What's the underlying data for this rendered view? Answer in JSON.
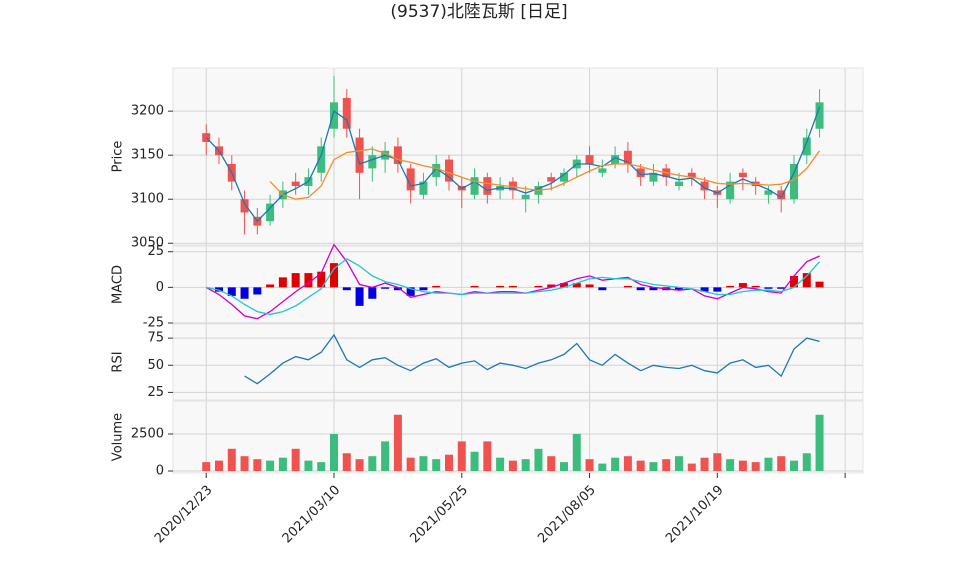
{
  "chart_data": {
    "type": "candlestick",
    "title": "(9537)北陸瓦斯 [日足]",
    "x": [
      0,
      5,
      10,
      15,
      20,
      25,
      30,
      35,
      40,
      45,
      50,
      55,
      60,
      65,
      70,
      75,
      80,
      85,
      90,
      95,
      100,
      105,
      110,
      115,
      120,
      125,
      130,
      135,
      140,
      145,
      150,
      155,
      160,
      165,
      170,
      175,
      180,
      185,
      190,
      195,
      200,
      205,
      210,
      215,
      220,
      225,
      230,
      235,
      240
    ],
    "xlim": [
      -13,
      257
    ],
    "xticks": [
      {
        "value": 0,
        "label": "2020/12/23"
      },
      {
        "value": 50,
        "label": "2021/03/10"
      },
      {
        "value": 100,
        "label": "2021/05/25"
      },
      {
        "value": 150,
        "label": "2021/08/05"
      },
      {
        "value": 200,
        "label": "2021/10/19"
      },
      {
        "value": 250,
        "label": null
      }
    ],
    "grid": true,
    "price": {
      "ylabel": "Price",
      "ylim": [
        3048,
        3249
      ],
      "yticks": [
        3050,
        3100,
        3150,
        3200
      ],
      "up_color": "#3dbd7d",
      "down_color": "#ef5350",
      "open": [
        3175,
        3160,
        3140,
        3100,
        3080,
        3075,
        3100,
        3120,
        3115,
        3130,
        3180,
        3215,
        3170,
        3135,
        3145,
        3160,
        3135,
        3105,
        3125,
        3145,
        3115,
        3105,
        3125,
        3110,
        3120,
        3100,
        3105,
        3125,
        3120,
        3135,
        3150,
        3130,
        3140,
        3155,
        3135,
        3120,
        3135,
        3115,
        3130,
        3120,
        3110,
        3100,
        3130,
        3120,
        3105,
        3110,
        3100,
        3150,
        3180
      ],
      "high": [
        3185,
        3170,
        3150,
        3110,
        3090,
        3105,
        3120,
        3130,
        3135,
        3170,
        3240,
        3225,
        3180,
        3160,
        3165,
        3170,
        3140,
        3130,
        3150,
        3150,
        3125,
        3135,
        3130,
        3125,
        3125,
        3115,
        3120,
        3130,
        3135,
        3150,
        3160,
        3145,
        3160,
        3165,
        3140,
        3140,
        3140,
        3130,
        3135,
        3125,
        3115,
        3130,
        3135,
        3125,
        3115,
        3115,
        3150,
        3180,
        3225
      ],
      "low": [
        3150,
        3140,
        3110,
        3060,
        3060,
        3070,
        3090,
        3105,
        3105,
        3120,
        3170,
        3170,
        3100,
        3120,
        3130,
        3130,
        3095,
        3100,
        3115,
        3110,
        3090,
        3100,
        3095,
        3100,
        3100,
        3085,
        3095,
        3110,
        3115,
        3125,
        3130,
        3125,
        3135,
        3130,
        3115,
        3115,
        3115,
        3110,
        3115,
        3100,
        3090,
        3095,
        3110,
        3105,
        3095,
        3085,
        3095,
        3140,
        3170
      ],
      "close": [
        3165,
        3150,
        3120,
        3085,
        3070,
        3095,
        3110,
        3115,
        3125,
        3160,
        3210,
        3180,
        3130,
        3150,
        3155,
        3140,
        3110,
        3120,
        3140,
        3120,
        3110,
        3125,
        3105,
        3115,
        3110,
        3105,
        3115,
        3120,
        3130,
        3145,
        3140,
        3135,
        3150,
        3140,
        3125,
        3130,
        3125,
        3120,
        3125,
        3110,
        3105,
        3120,
        3125,
        3115,
        3110,
        3100,
        3140,
        3170,
        3210
      ],
      "series": [
        {
          "color": "#1f77b4",
          "values": [
            3170,
            3155,
            3130,
            3095,
            3075,
            3090,
            3105,
            3112,
            3120,
            3150,
            3200,
            3190,
            3140,
            3145,
            3150,
            3145,
            3115,
            3118,
            3135,
            3125,
            3112,
            3120,
            3110,
            3113,
            3112,
            3107,
            3112,
            3118,
            3128,
            3140,
            3140,
            3137,
            3147,
            3142,
            3128,
            3129,
            3126,
            3122,
            3124,
            3113,
            3107,
            3116,
            3123,
            3117,
            3111,
            3102,
            3130,
            3165,
            3205
          ]
        },
        {
          "color": "#f28e2b",
          "values": [
            null,
            null,
            null,
            null,
            null,
            3120,
            3105,
            3100,
            3102,
            3115,
            3145,
            3153,
            3155,
            3157,
            3152,
            3145,
            3142,
            3138,
            3135,
            3130,
            3125,
            3120,
            3118,
            3116,
            3114,
            3112,
            3110,
            3112,
            3118,
            3125,
            3132,
            3138,
            3140,
            3140,
            3137,
            3133,
            3130,
            3127,
            3125,
            3122,
            3118,
            3117,
            3118,
            3117,
            3116,
            3117,
            3122,
            3135,
            3155
          ]
        }
      ]
    },
    "macd": {
      "ylabel": "MACD",
      "ylim": [
        -25,
        29
      ],
      "yticks": [
        -25,
        0,
        25
      ],
      "series": [
        {
          "color": "#cc00cc",
          "values": [
            0,
            -5,
            -12,
            -20,
            -22,
            -17,
            -10,
            -3,
            3,
            10,
            30,
            18,
            2,
            0,
            3,
            0,
            -7,
            -5,
            -3,
            -4,
            -5,
            -3,
            -4,
            -3,
            -3,
            -4,
            -2,
            0,
            3,
            6,
            8,
            5,
            6,
            7,
            2,
            0,
            -1,
            -2,
            -1,
            -6,
            -8,
            -4,
            0,
            -1,
            -3,
            -4,
            8,
            18,
            22
          ]
        },
        {
          "color": "#22c6cf",
          "values": [
            0,
            -2,
            -6,
            -12,
            -17,
            -19,
            -17,
            -13,
            -7,
            -1,
            13,
            20,
            15,
            8,
            4,
            2,
            -1,
            -3,
            -4,
            -4,
            -5,
            -4,
            -4,
            -4,
            -4,
            -4,
            -3,
            -2,
            0,
            3,
            6,
            7,
            6,
            6,
            4,
            2,
            1,
            0,
            -1,
            -3,
            -5,
            -5,
            -3,
            -2,
            -2,
            -3,
            0,
            8,
            18
          ]
        }
      ],
      "histogram": {
        "pos_color": "#e00000",
        "neg_color": "#0000e0",
        "values": [
          0,
          -3,
          -6,
          -8,
          -5,
          2,
          7,
          10,
          10,
          11,
          17,
          -2,
          -13,
          -8,
          -1,
          -2,
          -6,
          -2,
          1,
          0,
          0,
          1,
          0,
          1,
          1,
          0,
          1,
          2,
          3,
          3,
          2,
          -2,
          0,
          1,
          -2,
          -2,
          -2,
          -2,
          0,
          -3,
          -3,
          1,
          3,
          1,
          -1,
          -1,
          8,
          10,
          4
        ]
      }
    },
    "rsi": {
      "ylabel": "RSI",
      "ylim": [
        18,
        88
      ],
      "yticks": [
        25,
        50,
        75
      ],
      "series": [
        {
          "color": "#1f77b4",
          "values": [
            null,
            null,
            null,
            40,
            33,
            42,
            52,
            58,
            55,
            62,
            78,
            55,
            48,
            55,
            57,
            50,
            45,
            52,
            56,
            48,
            52,
            54,
            46,
            52,
            50,
            47,
            52,
            55,
            60,
            70,
            55,
            50,
            60,
            52,
            45,
            50,
            48,
            47,
            50,
            45,
            43,
            52,
            55,
            48,
            50,
            40,
            65,
            75,
            72
          ]
        }
      ]
    },
    "volume": {
      "ylabel": "Volume",
      "ylim": [
        -135,
        4730
      ],
      "yticks": [
        0,
        2500
      ],
      "values": [
        600,
        700,
        1500,
        1000,
        800,
        700,
        900,
        1500,
        700,
        600,
        2500,
        1200,
        800,
        1000,
        2000,
        3800,
        900,
        1000,
        800,
        1100,
        2000,
        1300,
        2000,
        900,
        700,
        800,
        1500,
        1000,
        600,
        2500,
        800,
        500,
        900,
        1000,
        700,
        600,
        800,
        1000,
        500,
        900,
        1200,
        800,
        700,
        600,
        900,
        1000,
        700,
        1200,
        3800
      ]
    }
  }
}
